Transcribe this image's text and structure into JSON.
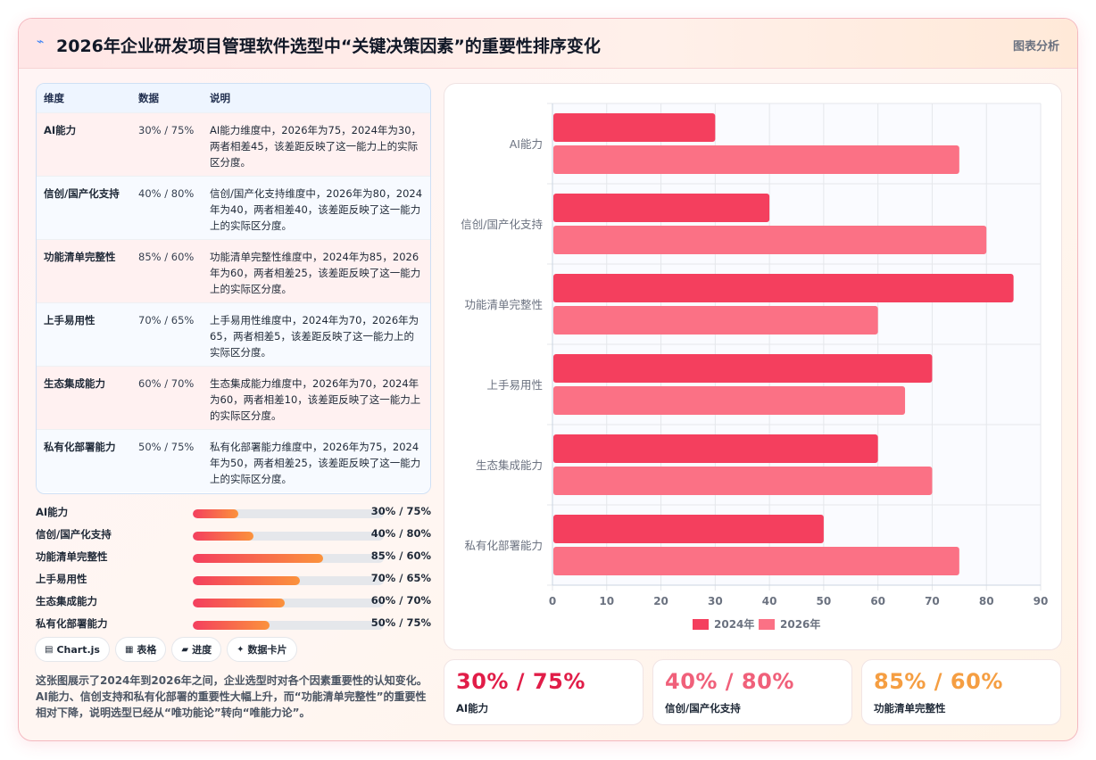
{
  "header": {
    "title": "2026年企业研发项目管理软件选型中“关键决策因素”的重要性排序变化",
    "tag": "图表分析"
  },
  "table": {
    "headers": [
      "维度",
      "数据",
      "说明"
    ],
    "rows": [
      {
        "dim": "AI能力",
        "data": "30% / 75%",
        "desc": "AI能力维度中，2026年为75，2024年为30，两者相差45，该差距反映了这一能力上的实际区分度。"
      },
      {
        "dim": "信创/国产化支持",
        "data": "40% / 80%",
        "desc": "信创/国产化支持维度中，2026年为80，2024年为40，两者相差40，该差距反映了这一能力上的实际区分度。"
      },
      {
        "dim": "功能清单完整性",
        "data": "85% / 60%",
        "desc": "功能清单完整性维度中，2024年为85，2026年为60，两者相差25，该差距反映了这一能力上的实际区分度。"
      },
      {
        "dim": "上手易用性",
        "data": "70% / 65%",
        "desc": "上手易用性维度中，2024年为70，2026年为65，两者相差5，该差距反映了这一能力上的实际区分度。"
      },
      {
        "dim": "生态集成能力",
        "data": "60% / 70%",
        "desc": "生态集成能力维度中，2026年为70，2024年为60，两者相差10，该差距反映了这一能力上的实际区分度。"
      },
      {
        "dim": "私有化部署能力",
        "data": "50% / 75%",
        "desc": "私有化部署能力维度中，2026年为75，2024年为50，两者相差25，该差距反映了这一能力上的实际区分度。"
      }
    ]
  },
  "progress": [
    {
      "label": "AI能力",
      "value": "30% / 75%",
      "fill": 0.24
    },
    {
      "label": "信创/国产化支持",
      "value": "40% / 80%",
      "fill": 0.32
    },
    {
      "label": "功能清单完整性",
      "value": "85% / 60%",
      "fill": 0.68
    },
    {
      "label": "上手易用性",
      "value": "70% / 65%",
      "fill": 0.56
    },
    {
      "label": "生态集成能力",
      "value": "60% / 70%",
      "fill": 0.48
    },
    {
      "label": "私有化部署能力",
      "value": "50% / 75%",
      "fill": 0.4
    }
  ],
  "chips": [
    {
      "icon": "▤",
      "label": "Chart.js"
    },
    {
      "icon": "▦",
      "label": "表格"
    },
    {
      "icon": "▰",
      "label": "进度"
    },
    {
      "icon": "✦",
      "label": "数据卡片"
    }
  ],
  "summary": "这张图展示了2024年到2026年之间，企业选型时对各个因素重要性的认知变化。AI能力、信创支持和私有化部署的重要性大幅上升，而“功能清单完整性”的重要性相对下降，说明选型已经从“唯功能论”转向“唯能力论”。",
  "stats": [
    {
      "value": "30% / 75%",
      "caption": "AI能力",
      "color": "#e11d48"
    },
    {
      "value": "40% / 80%",
      "caption": "信创/国产化支持",
      "color": "#f0607a"
    },
    {
      "value": "85% / 60%",
      "caption": "功能清单完整性",
      "color": "#f59e42"
    }
  ],
  "chart_data": {
    "type": "bar",
    "orientation": "horizontal",
    "categories": [
      "AI能力",
      "信创/国产化支持",
      "功能清单完整性",
      "上手易用性",
      "生态集成能力",
      "私有化部署能力"
    ],
    "series": [
      {
        "name": "2024年",
        "values": [
          30,
          40,
          85,
          70,
          60,
          50
        ],
        "color": "#f43f5e"
      },
      {
        "name": "2026年",
        "values": [
          75,
          80,
          60,
          65,
          70,
          75
        ],
        "color": "#fb7185"
      }
    ],
    "xlim": [
      0,
      90
    ],
    "xticks": [
      0,
      10,
      20,
      30,
      40,
      50,
      60,
      70,
      80,
      90
    ],
    "grid": true,
    "legend": "bottom"
  }
}
